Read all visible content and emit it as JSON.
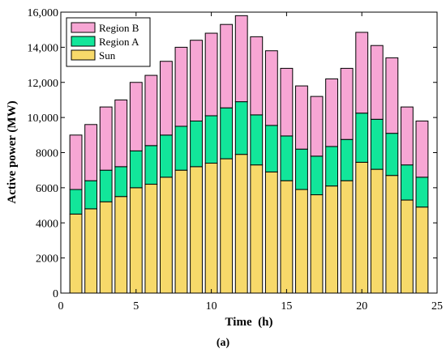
{
  "chart_data": {
    "type": "bar",
    "stacked": true,
    "x": [
      1,
      2,
      3,
      4,
      5,
      6,
      7,
      8,
      9,
      10,
      11,
      12,
      13,
      14,
      15,
      16,
      17,
      18,
      19,
      20,
      21,
      22,
      23,
      24
    ],
    "series": [
      {
        "name": "Sun",
        "color": "#f7d96a",
        "values": [
          4500,
          4800,
          5200,
          5500,
          6000,
          6200,
          6600,
          7000,
          7200,
          7400,
          7650,
          7900,
          7300,
          6900,
          6400,
          5900,
          5600,
          6100,
          6400,
          7450,
          7050,
          6700,
          5300,
          4900
        ]
      },
      {
        "name": "Region A",
        "color": "#12e69a",
        "values": [
          1400,
          1600,
          1800,
          1700,
          2100,
          2200,
          2400,
          2500,
          2600,
          2700,
          2900,
          3000,
          2850,
          2650,
          2550,
          2300,
          2200,
          2250,
          2350,
          2800,
          2850,
          2400,
          2000,
          1700
        ]
      },
      {
        "name": "Region B",
        "color": "#f7a6d4",
        "values": [
          3100,
          3200,
          3600,
          3800,
          3900,
          4000,
          4200,
          4500,
          4600,
          4700,
          4750,
          4900,
          4450,
          4250,
          3850,
          3600,
          3400,
          3850,
          4050,
          4600,
          4200,
          4300,
          3300,
          3200
        ]
      }
    ],
    "xlabel": "Time  (h)",
    "ylabel": "Active power (MW)",
    "xlim": [
      0,
      25
    ],
    "ylim": [
      0,
      16000
    ],
    "xticks": [
      0,
      5,
      10,
      15,
      20,
      25
    ],
    "xtick_labels": [
      "0",
      "5",
      "10",
      "15",
      "20",
      "25"
    ],
    "yticks": [
      0,
      2000,
      4000,
      6000,
      8000,
      10000,
      12000,
      14000,
      16000
    ],
    "ytick_labels": [
      "0",
      "2000",
      "4000",
      "6000",
      "8000",
      "10,000",
      "12,000",
      "14,000",
      "16,000"
    ],
    "legend_order": [
      "Region B",
      "Region A",
      "Sun"
    ],
    "legend_position": "top-left",
    "grid": false
  },
  "caption": "(a)"
}
